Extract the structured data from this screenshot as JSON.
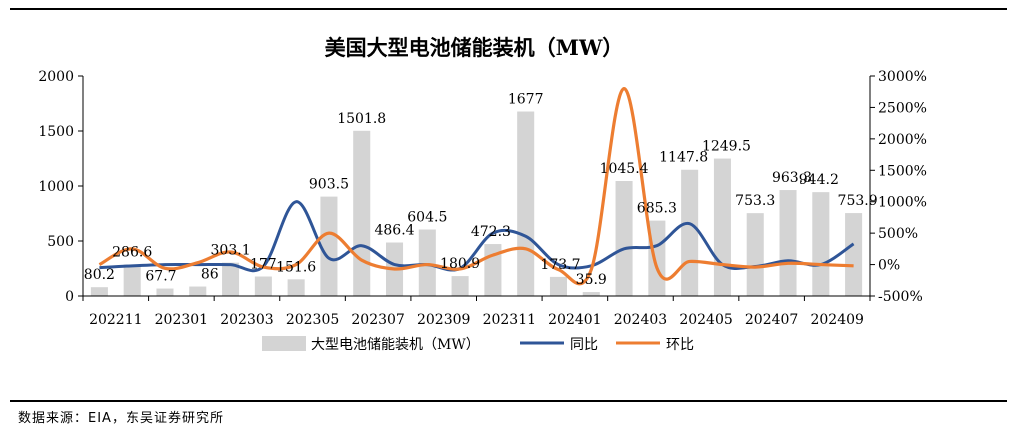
{
  "chart_data": {
    "type": "bar",
    "title": "美国大型电池储能装机（MW）",
    "categories": [
      "202211",
      "202212",
      "202301",
      "202302",
      "202303",
      "202304",
      "202305",
      "202306",
      "202307",
      "202308",
      "202309",
      "202310",
      "202311",
      "202312",
      "202401",
      "202402",
      "202403",
      "202404",
      "202405",
      "202406",
      "202407",
      "202408",
      "202409",
      "202410"
    ],
    "tick_labels": [
      "202211",
      "202301",
      "202303",
      "202305",
      "202307",
      "202309",
      "202311",
      "202401",
      "202403",
      "202405",
      "202407",
      "202409"
    ],
    "left_axis": {
      "range": [
        0,
        2000
      ],
      "ticks": [
        "0",
        "500",
        "1000",
        "1500",
        "2000"
      ]
    },
    "right_axis": {
      "range": [
        -500,
        3000
      ],
      "ticks": [
        "-500%",
        "0%",
        "500%",
        "1000%",
        "1500%",
        "2000%",
        "2500%",
        "3000%"
      ]
    },
    "legend": {
      "placement": "bottom",
      "bar": "大型电池储能装机（MW）",
      "yoy": "同比",
      "mom": "环比"
    },
    "colors": {
      "bar": "#d4d4d4",
      "yoy": "#2f5597",
      "mom": "#ed7d31"
    },
    "series": [
      {
        "name": "大型电池储能装机（MW）",
        "type": "bar",
        "axis": "left",
        "values": [
          80.2,
          286.6,
          67.7,
          86,
          303.1,
          177,
          151.6,
          903.5,
          1501.8,
          486.4,
          604.5,
          180.9,
          472.3,
          1677,
          173.7,
          35.9,
          1045.4,
          685.3,
          1147.8,
          1249.5,
          753.3,
          963.3,
          944.2,
          753.9
        ],
        "labels": [
          "80.2",
          "286.6",
          "67.7",
          "86",
          "303.1",
          "177",
          "151.6",
          "903.5",
          "1501.8",
          "486.4",
          "604.5",
          "180.9",
          "472.3",
          "1677",
          "173.7",
          "35.9",
          "1045.4",
          "685.3",
          "1147.8",
          "1249.5",
          "753.3",
          "963.3",
          "944.2",
          "753.9"
        ]
      },
      {
        "name": "同比",
        "type": "line",
        "axis": "right",
        "values": [
          -50,
          -20,
          0,
          0,
          0,
          -30,
          1000,
          100,
          300,
          0,
          0,
          -60,
          500,
          450,
          0,
          -20,
          250,
          300,
          650,
          0,
          -30,
          60,
          0,
          330
        ]
      },
      {
        "name": "环比",
        "type": "line",
        "axis": "right",
        "values": [
          0,
          250,
          -60,
          30,
          200,
          -40,
          0,
          500,
          70,
          -70,
          0,
          -70,
          150,
          250,
          -80,
          -80,
          2800,
          -50,
          50,
          0,
          -40,
          20,
          0,
          -20
        ]
      }
    ]
  },
  "source_text": "数据来源：EIA，东吴证券研究所"
}
